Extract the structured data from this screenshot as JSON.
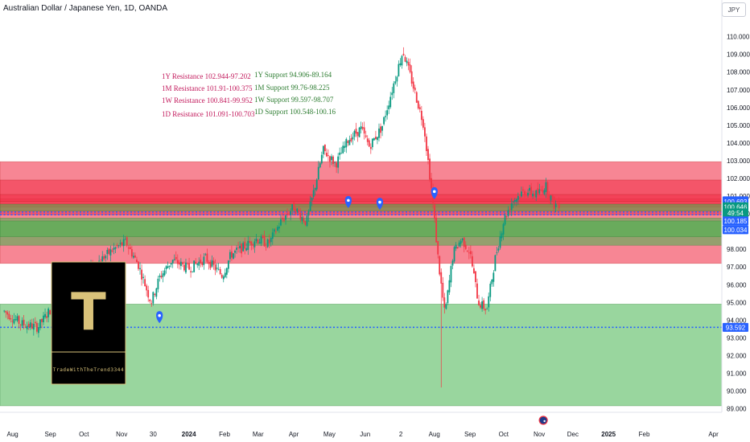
{
  "header": {
    "title": "Australian Dollar / Japanese Yen, 1D, OANDA",
    "currency_label": "JPY"
  },
  "watermark": {
    "letter": "T",
    "caption": "TradeWithTheTrend3344",
    "bg": "#000000",
    "letter_color": "#d9c27a",
    "border_color": "#d9c27a"
  },
  "colors": {
    "resistance_zone": "#f2364d",
    "support_zone": "#45b44f",
    "level_line": "#2962ff",
    "up_candle": "#089981",
    "down_candle": "#f23645",
    "resistance_text": "#c2185b",
    "support_text": "#2e7d32",
    "marker": "#2962ff"
  },
  "annotations": {
    "resistance": [
      "1Y Resistance 102.944-97.202",
      "1M Resistance 101.91-100.375",
      "1W Resistance 100.841-99.952",
      "1D Resistance 101.091-100.703"
    ],
    "support": [
      "1Y Support 94.906-89.164",
      "1M Support 99.76-98.225",
      "1W Support 99.597-98.707",
      "1D Support 100.548-100.16"
    ]
  },
  "chart_data": {
    "type": "candlestick",
    "ylim": [
      88.8,
      110.8
    ],
    "y_ticks": [
      "89.000",
      "90.000",
      "91.000",
      "92.000",
      "93.000",
      "94.000",
      "95.000",
      "96.000",
      "97.000",
      "98.000",
      "99.000",
      "100.000",
      "101.000",
      "102.000",
      "103.000",
      "104.000",
      "105.000",
      "106.000",
      "107.000",
      "108.000",
      "109.000",
      "110.000"
    ],
    "x_ticks": [
      {
        "label": "Aug",
        "t": 2023.58
      },
      {
        "label": "Sep",
        "t": 2023.67
      },
      {
        "label": "Oct",
        "t": 2023.75
      },
      {
        "label": "Nov",
        "t": 2023.84
      },
      {
        "label": "30",
        "t": 2023.915
      },
      {
        "label": "2024",
        "t": 2024.0
      },
      {
        "label": "Feb",
        "t": 2024.085
      },
      {
        "label": "Mar",
        "t": 2024.165
      },
      {
        "label": "Apr",
        "t": 2024.25
      },
      {
        "label": "May",
        "t": 2024.335
      },
      {
        "label": "Jun",
        "t": 2024.42
      },
      {
        "label": "2",
        "t": 2024.505
      },
      {
        "label": "Aug",
        "t": 2024.585
      },
      {
        "label": "Sep",
        "t": 2024.67
      },
      {
        "label": "Oct",
        "t": 2024.75
      },
      {
        "label": "Nov",
        "t": 2024.835
      },
      {
        "label": "Dec",
        "t": 2024.915
      },
      {
        "label": "2025",
        "t": 2025.0
      },
      {
        "label": "Feb",
        "t": 2025.085
      },
      {
        "label": "Apr",
        "t": 2025.25
      }
    ],
    "xlim": [
      2023.55,
      2025.27
    ],
    "zones": [
      {
        "name": "1Y Resistance",
        "low": 97.202,
        "high": 102.944,
        "kind": "resistance"
      },
      {
        "name": "1M Resistance",
        "low": 100.375,
        "high": 101.91,
        "kind": "resistance"
      },
      {
        "name": "1W Resistance",
        "low": 99.952,
        "high": 100.841,
        "kind": "resistance"
      },
      {
        "name": "1D Resistance",
        "low": 100.703,
        "high": 101.091,
        "kind": "resistance"
      },
      {
        "name": "1Y Support",
        "low": 89.164,
        "high": 94.906,
        "kind": "support"
      },
      {
        "name": "1M Support",
        "low": 98.225,
        "high": 99.76,
        "kind": "support"
      },
      {
        "name": "1W Support",
        "low": 98.707,
        "high": 99.597,
        "kind": "support"
      },
      {
        "name": "1D Support",
        "low": 100.16,
        "high": 100.548,
        "kind": "support"
      }
    ],
    "dotted_levels": [
      100.1,
      99.95,
      93.592
    ],
    "price_labels": [
      {
        "text": "100.737",
        "y": 100.737,
        "bg": "#2962ff"
      },
      {
        "text": "100.693",
        "y": 100.693,
        "bg": "#2962ff"
      },
      {
        "text": "100.646",
        "y": 100.4,
        "bg": "#089981"
      },
      {
        "text": "49:54",
        "y": 100.05,
        "bg": "#089981"
      },
      {
        "text": "100.185",
        "y": 99.6,
        "bg": "#2962ff"
      },
      {
        "text": "100.034",
        "y": 99.1,
        "bg": "#2962ff"
      },
      {
        "text": "93.592",
        "y": 93.592,
        "bg": "#2962ff"
      }
    ],
    "markers": [
      {
        "t": 2023.93,
        "y": 94.1
      },
      {
        "t": 2024.38,
        "y": 100.6
      },
      {
        "t": 2024.455,
        "y": 100.5
      },
      {
        "t": 2024.585,
        "y": 101.1
      }
    ],
    "path": [
      [
        2023.56,
        94.5
      ],
      [
        2023.6,
        93.8
      ],
      [
        2023.64,
        93.6
      ],
      [
        2023.67,
        94.6
      ],
      [
        2023.7,
        95.7
      ],
      [
        2023.74,
        96.5
      ],
      [
        2023.78,
        97.2
      ],
      [
        2023.82,
        98.0
      ],
      [
        2023.85,
        98.4
      ],
      [
        2023.88,
        97.1
      ],
      [
        2023.91,
        95.0
      ],
      [
        2023.93,
        96.4
      ],
      [
        2023.96,
        97.4
      ],
      [
        2024.0,
        96.9
      ],
      [
        2024.04,
        97.5
      ],
      [
        2024.08,
        96.5
      ],
      [
        2024.1,
        97.7
      ],
      [
        2024.13,
        98.1
      ],
      [
        2024.16,
        98.6
      ],
      [
        2024.19,
        98.3
      ],
      [
        2024.22,
        99.6
      ],
      [
        2024.25,
        100.4
      ],
      [
        2024.28,
        99.5
      ],
      [
        2024.3,
        101.5
      ],
      [
        2024.32,
        103.6
      ],
      [
        2024.35,
        102.8
      ],
      [
        2024.38,
        104.2
      ],
      [
        2024.41,
        104.8
      ],
      [
        2024.43,
        103.8
      ],
      [
        2024.46,
        104.9
      ],
      [
        2024.49,
        107.5
      ],
      [
        2024.51,
        109.2
      ],
      [
        2024.53,
        107.6
      ],
      [
        2024.56,
        105.0
      ],
      [
        2024.58,
        101.0
      ],
      [
        2024.595,
        97.2
      ],
      [
        2024.61,
        94.3
      ],
      [
        2024.63,
        97.8
      ],
      [
        2024.65,
        98.6
      ],
      [
        2024.67,
        97.8
      ],
      [
        2024.69,
        95.0
      ],
      [
        2024.71,
        94.6
      ],
      [
        2024.73,
        97.5
      ],
      [
        2024.75,
        99.6
      ],
      [
        2024.77,
        100.7
      ],
      [
        2024.8,
        101.3
      ],
      [
        2024.83,
        101.1
      ],
      [
        2024.85,
        101.6
      ],
      [
        2024.87,
        100.5
      ],
      [
        2024.885,
        100.6
      ]
    ]
  }
}
